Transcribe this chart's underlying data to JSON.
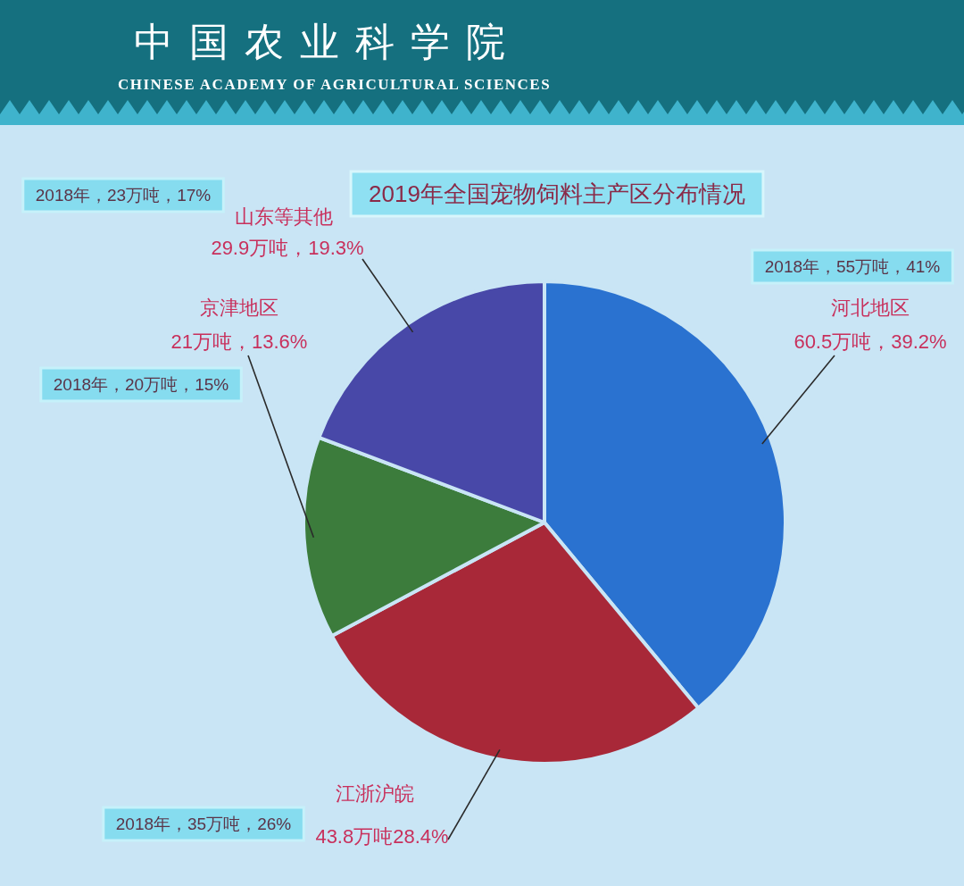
{
  "chart_data": {
    "type": "pie",
    "title": "2019年全国宠物饲料主产区分布情况",
    "categories": [
      "河北地区",
      "江浙沪皖",
      "京津地区",
      "山东等其他"
    ],
    "values": [
      60.5,
      43.8,
      21,
      29.9
    ],
    "colors": [
      "#2a72d0",
      "#a82838",
      "#3c7c3c",
      "#4848a8"
    ],
    "value_labels": [
      "60.5万吨，39.2%",
      "43.8万吨28.4%",
      "21万吨，13.6%",
      "29.9万吨，19.3%"
    ],
    "annotations": [
      "2018年，55万吨，41%",
      "2018年，35万吨，26%",
      "2018年，20万吨，15%",
      "2018年，23万吨，17%",
      "中国农业科学院",
      "CHINESE ACADEMY OF AGRICULTURAL SCIENCES"
    ]
  }
}
